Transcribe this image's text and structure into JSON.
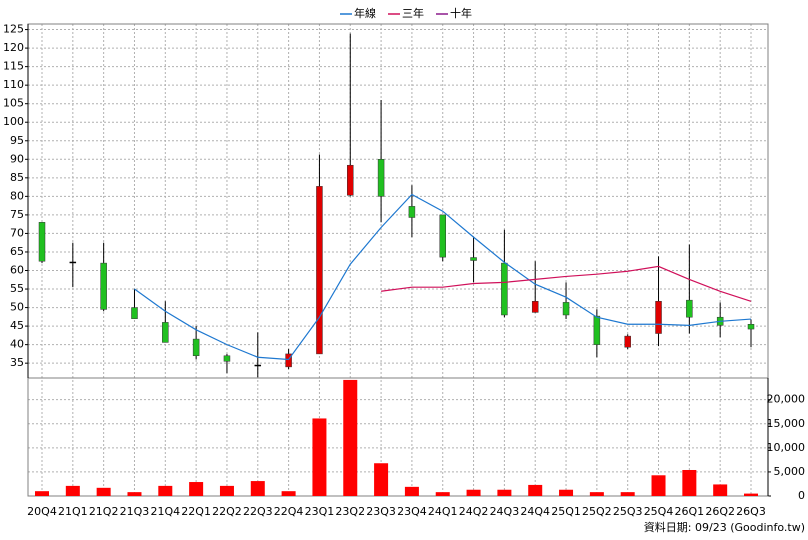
{
  "chart_data": {
    "type": "candlestick",
    "categories": [
      "20Q4",
      "21Q1",
      "21Q2",
      "21Q3",
      "21Q4",
      "22Q1",
      "22Q2",
      "22Q3",
      "22Q4",
      "23Q1",
      "23Q2",
      "23Q3",
      "23Q4",
      "24Q1",
      "24Q2",
      "24Q3",
      "24Q4",
      "25Q1",
      "25Q2",
      "25Q3",
      "25Q4",
      "26Q1",
      "26Q2",
      "26Q3"
    ],
    "candles": {
      "up_color": "#e00000",
      "down_color": "#20c020",
      "open": [
        73,
        62.3,
        62,
        50,
        46,
        41.5,
        37,
        34.5,
        34,
        37.5,
        80.3,
        90,
        77.3,
        75,
        63.5,
        62,
        48.7,
        51.4,
        47.7,
        39.3,
        43,
        52,
        47.4,
        45.5
      ],
      "high": [
        73,
        67.5,
        67.5,
        55,
        51.7,
        45,
        37.5,
        43.3,
        38.8,
        91.3,
        123.9,
        106,
        83,
        75,
        69,
        71,
        62.5,
        56.8,
        49.5,
        42.8,
        63.8,
        67,
        51.4,
        46.8
      ],
      "low": [
        62,
        55.5,
        49,
        47,
        40.6,
        36,
        32.3,
        31.2,
        33.4,
        37.5,
        80,
        73,
        69,
        62.5,
        56.8,
        47.4,
        48.6,
        46.9,
        36.6,
        38.8,
        39.6,
        43,
        42,
        39.3
      ],
      "close": [
        62.5,
        62.3,
        49.5,
        47,
        40.6,
        37,
        35.5,
        34.5,
        37.5,
        82.7,
        88.4,
        80,
        74.3,
        63.6,
        62.7,
        48,
        51.7,
        48,
        40,
        42.3,
        51.7,
        47.4,
        45.2,
        44.2
      ]
    },
    "series": [
      {
        "name": "年線",
        "color": "#1e78d0",
        "values": [
          null,
          null,
          null,
          55,
          49,
          44,
          40,
          36.6,
          36,
          47.4,
          61.7,
          71.6,
          80.5,
          76,
          69,
          62.2,
          56.3,
          52.8,
          47.4,
          45.5,
          45.5,
          45.2,
          46.3,
          46.9
        ]
      },
      {
        "name": "三年",
        "color": "#d0105a",
        "values": [
          null,
          null,
          null,
          null,
          null,
          null,
          null,
          null,
          null,
          null,
          null,
          54.4,
          55.5,
          55.5,
          56.5,
          56.8,
          57.6,
          58.4,
          59,
          59.8,
          61.1,
          57.6,
          54.4,
          51.7
        ]
      },
      {
        "name": "十年",
        "color": "#8a1a8a",
        "values": [
          null,
          null,
          null,
          null,
          null,
          null,
          null,
          null,
          null,
          null,
          null,
          null,
          null,
          null,
          null,
          null,
          null,
          null,
          null,
          null,
          null,
          null,
          null,
          null
        ]
      }
    ],
    "ylim": [
      31,
      126.5
    ],
    "yticks": [
      35,
      40,
      45,
      50,
      55,
      60,
      65,
      70,
      75,
      80,
      85,
      90,
      95,
      100,
      105,
      110,
      115,
      120,
      125
    ],
    "volume": {
      "color": "#ff0000",
      "axis": "y2",
      "values": [
        1000,
        2100,
        1700,
        800,
        2100,
        2900,
        2100,
        3100,
        1000,
        16100,
        24100,
        6800,
        1900,
        800,
        1300,
        1300,
        2300,
        1300,
        800,
        800,
        4300,
        5400,
        2400,
        500
      ]
    },
    "y2lim": [
      0,
      24500
    ],
    "y2ticks": [
      0,
      {
        "value": 5000,
        "label": "5,000"
      },
      {
        "value": 10000,
        "label": "10,000"
      },
      {
        "value": 15000,
        "label": "15,000"
      },
      {
        "value": 20000,
        "label": "20,000"
      }
    ],
    "grid": true,
    "legend": "top",
    "footnote": "資料日期: 09/23  (Goodinfo.tw)"
  }
}
